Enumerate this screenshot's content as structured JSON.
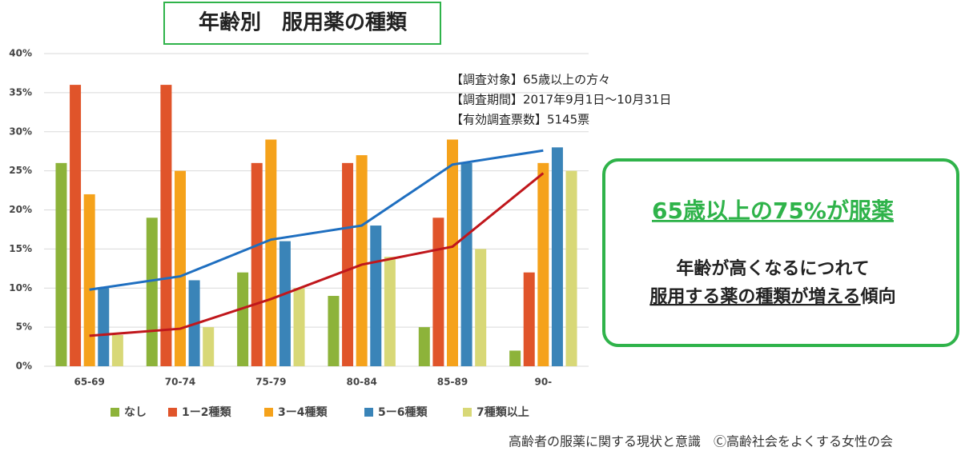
{
  "chart_data": {
    "type": "bar",
    "title": "年齢別　服用薬の種類",
    "notes": [
      "【調査対象】65歳以上の方々",
      "【調査期間】2017年9月1日～10月31日",
      "【有効調査票数】5145票"
    ],
    "categories": [
      "65-69",
      "70-74",
      "75-79",
      "80-84",
      "85-89",
      "90-"
    ],
    "series": [
      {
        "name": "なし",
        "color": "#8db33a",
        "values": [
          26,
          19,
          12,
          9,
          5,
          2
        ]
      },
      {
        "name": "1ー2種類",
        "color": "#e0542a",
        "values": [
          36,
          36,
          26,
          26,
          19,
          12
        ]
      },
      {
        "name": "3ー4種類",
        "color": "#f5a21b",
        "values": [
          22,
          25,
          29,
          27,
          29,
          26
        ]
      },
      {
        "name": "5ー6種類",
        "color": "#3a84b8",
        "values": [
          10,
          11,
          16,
          18,
          26,
          28
        ]
      },
      {
        "name": "7種類以上",
        "color": "#d8d877",
        "values": [
          4,
          5,
          10,
          14,
          15,
          25
        ]
      }
    ],
    "trend_lines": [
      {
        "color": "#1f6fc0",
        "values": [
          9.8,
          11.5,
          16.2,
          18,
          25.8,
          27.6
        ]
      },
      {
        "color": "#c0171c",
        "values": [
          3.9,
          4.8,
          8.6,
          13,
          15.3,
          24.7
        ]
      }
    ],
    "ylim": [
      0,
      40
    ],
    "yticks": [
      {
        "value": 0,
        "label": "0%"
      },
      {
        "value": 5,
        "label": "5%"
      },
      {
        "value": 10,
        "label": "10%"
      },
      {
        "value": 15,
        "label": "15%"
      },
      {
        "value": 20,
        "label": "20%"
      },
      {
        "value": 25,
        "label": "25%"
      },
      {
        "value": 30,
        "label": "30%"
      },
      {
        "value": 35,
        "label": "35%"
      },
      {
        "value": 40,
        "label": "40%"
      }
    ],
    "grid": true
  },
  "callout": {
    "heading": "65歳以上の75%が服薬",
    "line1": "年齢が高くなるにつれて",
    "line2_underlined": "服用する薬の種類が増える",
    "line2_rest": "傾向"
  },
  "footer": "高齢者の服薬に関する現状と意識　Ⓒ高齢社会をよくする女性の会"
}
